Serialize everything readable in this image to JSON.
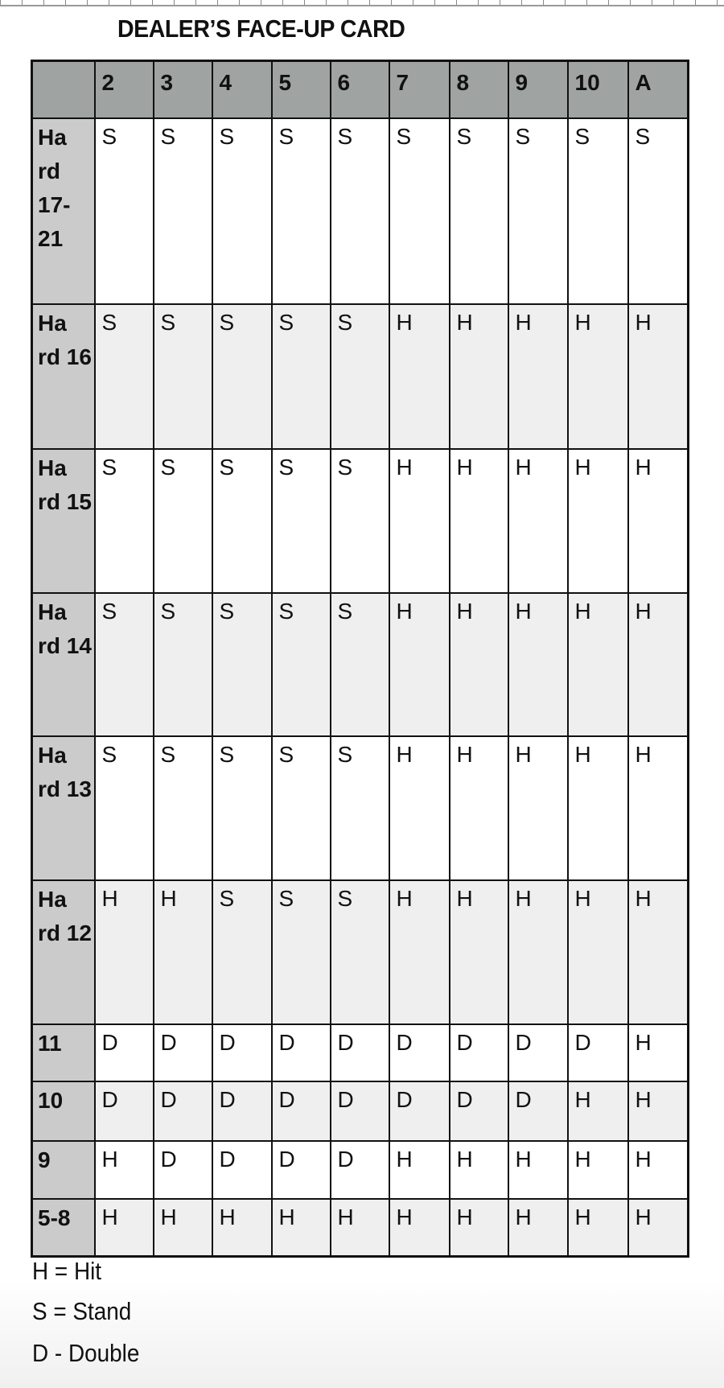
{
  "title": "DEALER’S FACE-UP CARD",
  "columns": [
    "2",
    "3",
    "4",
    "5",
    "6",
    "7",
    "8",
    "9",
    "10",
    "A"
  ],
  "rows": [
    {
      "label": "Ha rd 17- 21",
      "cells": [
        "S",
        "S",
        "S",
        "S",
        "S",
        "S",
        "S",
        "S",
        "S",
        "S"
      ]
    },
    {
      "label": "Ha rd 16",
      "cells": [
        "S",
        "S",
        "S",
        "S",
        "S",
        "H",
        "H",
        "H",
        "H",
        "H"
      ]
    },
    {
      "label": "Ha rd 15",
      "cells": [
        "S",
        "S",
        "S",
        "S",
        "S",
        "H",
        "H",
        "H",
        "H",
        "H"
      ]
    },
    {
      "label": "Ha rd 14",
      "cells": [
        "S",
        "S",
        "S",
        "S",
        "S",
        "H",
        "H",
        "H",
        "H",
        "H"
      ]
    },
    {
      "label": "Ha rd 13",
      "cells": [
        "S",
        "S",
        "S",
        "S",
        "S",
        "H",
        "H",
        "H",
        "H",
        "H"
      ]
    },
    {
      "label": "Ha rd 12",
      "cells": [
        "H",
        "H",
        "S",
        "S",
        "S",
        "H",
        "H",
        "H",
        "H",
        "H"
      ]
    },
    {
      "label": "11",
      "cells": [
        "D",
        "D",
        "D",
        "D",
        "D",
        "D",
        "D",
        "D",
        "D",
        "H"
      ]
    },
    {
      "label": "10",
      "cells": [
        "D",
        "D",
        "D",
        "D",
        "D",
        "D",
        "D",
        "D",
        "H",
        "H"
      ]
    },
    {
      "label": "9",
      "cells": [
        "H",
        "D",
        "D",
        "D",
        "D",
        "H",
        "H",
        "H",
        "H",
        "H"
      ]
    },
    {
      "label": "5-8",
      "cells": [
        "H",
        "H",
        "H",
        "H",
        "H",
        "H",
        "H",
        "H",
        "H",
        "H"
      ]
    }
  ],
  "legend": [
    "H = Hit",
    "S = Stand",
    "D - Double"
  ],
  "colors": {
    "header_bg": "#9fa3a2",
    "row_header_bg": "#cbcbcb",
    "alt_row_bg": "#efefef"
  }
}
